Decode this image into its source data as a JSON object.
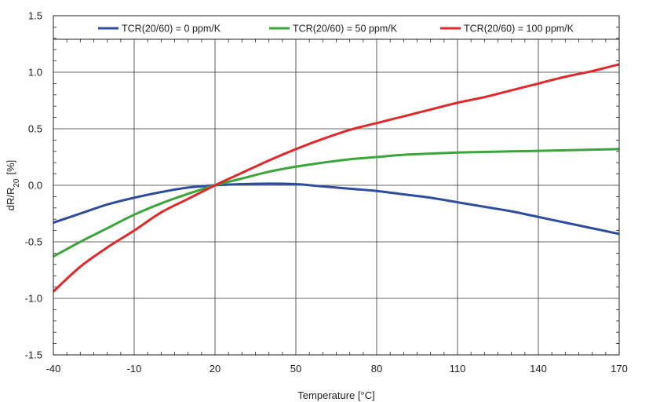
{
  "chart_data": {
    "type": "line",
    "xlabel": "Temperature [°C]",
    "ylabel_main": "dR/R",
    "ylabel_sub": "20",
    "ylabel_unit": "[%]",
    "xlim": [
      -40,
      170
    ],
    "ylim": [
      -1.5,
      1.5
    ],
    "x_ticks": [
      -40,
      -10,
      20,
      50,
      80,
      110,
      140,
      170
    ],
    "x_tick_labels": [
      "-40",
      "-10",
      "20",
      "50",
      "80",
      "110",
      "140",
      "170"
    ],
    "y_ticks": [
      -1.5,
      -1.0,
      -0.5,
      0.0,
      0.5,
      1.0,
      1.5
    ],
    "y_tick_labels": [
      "-1.5",
      "-1.0",
      "-0.5",
      "0.0",
      "0.5",
      "1.0",
      "1.5"
    ],
    "grid": true,
    "minor_ticks": true,
    "legend_position": "top",
    "x": [
      -40,
      -30,
      -20,
      -10,
      0,
      10,
      20,
      30,
      40,
      50,
      60,
      70,
      80,
      90,
      100,
      110,
      120,
      130,
      140,
      150,
      160,
      170
    ],
    "series": [
      {
        "name": "TCR(20/60) = 0 ppm/K",
        "color": "#2e4d9e",
        "values": [
          -0.33,
          -0.25,
          -0.17,
          -0.11,
          -0.06,
          -0.02,
          0.0,
          0.01,
          0.015,
          0.01,
          -0.01,
          -0.03,
          -0.05,
          -0.08,
          -0.11,
          -0.15,
          -0.19,
          -0.23,
          -0.28,
          -0.33,
          -0.38,
          -0.43
        ]
      },
      {
        "name": "TCR(20/60) = 50 ppm/K",
        "color": "#3aa63a",
        "values": [
          -0.63,
          -0.5,
          -0.38,
          -0.26,
          -0.16,
          -0.075,
          0.0,
          0.06,
          0.12,
          0.165,
          0.2,
          0.23,
          0.25,
          0.27,
          0.28,
          0.29,
          0.295,
          0.3,
          0.305,
          0.31,
          0.315,
          0.32
        ]
      },
      {
        "name": "TCR(20/60) = 100 ppm/K",
        "color": "#e3282a",
        "values": [
          -0.94,
          -0.72,
          -0.55,
          -0.4,
          -0.24,
          -0.12,
          0.0,
          0.11,
          0.22,
          0.32,
          0.41,
          0.49,
          0.55,
          0.61,
          0.67,
          0.73,
          0.78,
          0.84,
          0.9,
          0.96,
          1.01,
          1.07
        ]
      }
    ]
  }
}
